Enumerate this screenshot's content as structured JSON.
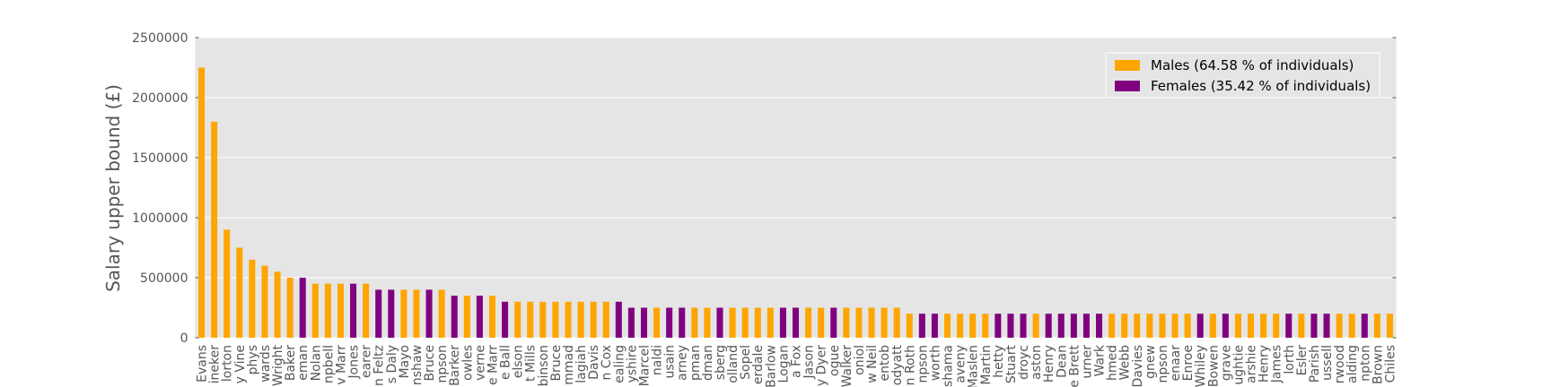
{
  "chart_data": {
    "type": "bar",
    "ylabel": "Salary upper bound (£)",
    "ylim": [
      0,
      2500000
    ],
    "yticks": [
      0,
      500000,
      1000000,
      1500000,
      2000000,
      2500000
    ],
    "ytick_labels": [
      "0",
      "500000",
      "1000000",
      "1500000",
      "2000000",
      "2500000"
    ],
    "grid": true,
    "legend_position": "top-right",
    "legend": [
      {
        "key": "male",
        "label": "Males (64.58 % of individuals)",
        "color": "#FFA500"
      },
      {
        "key": "female",
        "label": "Females (35.42 % of individuals)",
        "color": "#800080"
      }
    ],
    "categories": [
      "Evans",
      "ineker",
      "lorton",
      "y Vine",
      "phys",
      "wards",
      "Wright",
      "Baker",
      "eman",
      "Nolan",
      "npbell",
      "v Marr",
      "Jones",
      "earer",
      "n Feltz",
      "s Daly",
      "Mayo",
      "nshaw",
      "Bruce",
      "npson",
      "Barker",
      "owles",
      "verne",
      "e Marr",
      "e Ball",
      "elson",
      "t Mills",
      "binson",
      "Bruce",
      "mmad",
      "lagiah",
      "Davis",
      "n Cox",
      "ealing",
      "yshire",
      "Marcel",
      "naldi",
      "usain",
      "arney",
      "pman",
      "dman",
      "sberg",
      "olland",
      "Sopel",
      "erdale",
      "Barlow",
      "Logan",
      "a Fox",
      "Jason",
      "y Dyer",
      "ogue",
      "Walker",
      "oniol",
      "w Neil",
      "entob",
      "odyatt",
      "n Roth",
      "npson",
      "worth",
      "shama",
      "aveny",
      "Maslen",
      "Martin",
      "hetty",
      "Stuart",
      "droyc",
      "aston",
      "Henry",
      "Dean",
      "e Brett",
      "urner",
      "Wark",
      "hmed",
      "Webb",
      "Davies",
      "gnew",
      "npson",
      "enaar",
      "Enroe",
      "Whiley",
      "Bowen",
      "grave",
      "ughtie",
      "arshie",
      "Henry",
      "James",
      "lorth",
      "Esler",
      "Parish",
      "ussell",
      "rwood",
      "alding",
      "npton",
      "Brown",
      "Chiles"
    ],
    "series": [
      {
        "key": "male",
        "values": [
          2250000,
          1800000,
          900000,
          750000,
          650000,
          600000,
          550000,
          500000,
          0,
          450000,
          450000,
          450000,
          0,
          450000,
          0,
          0,
          400000,
          400000,
          0,
          400000,
          0,
          350000,
          0,
          350000,
          0,
          300000,
          300000,
          300000,
          300000,
          300000,
          300000,
          300000,
          300000,
          0,
          0,
          0,
          250000,
          0,
          0,
          250000,
          250000,
          0,
          250000,
          250000,
          250000,
          250000,
          0,
          0,
          250000,
          250000,
          0,
          250000,
          250000,
          250000,
          250000,
          250000,
          200000,
          0,
          0,
          200000,
          200000,
          200000,
          200000,
          0,
          0,
          0,
          200000,
          0,
          0,
          0,
          0,
          0,
          200000,
          200000,
          200000,
          200000,
          200000,
          200000,
          200000,
          0,
          200000,
          0,
          200000,
          200000,
          200000,
          200000,
          0,
          200000,
          0,
          0,
          200000,
          200000,
          0,
          200000,
          200000
        ]
      },
      {
        "key": "female",
        "values": [
          0,
          0,
          0,
          0,
          0,
          0,
          0,
          0,
          500000,
          0,
          0,
          0,
          450000,
          0,
          400000,
          400000,
          0,
          0,
          400000,
          0,
          350000,
          0,
          350000,
          0,
          300000,
          0,
          0,
          0,
          0,
          0,
          0,
          0,
          0,
          300000,
          250000,
          250000,
          0,
          250000,
          250000,
          0,
          0,
          250000,
          0,
          0,
          0,
          0,
          250000,
          250000,
          0,
          0,
          250000,
          0,
          0,
          0,
          0,
          0,
          0,
          200000,
          200000,
          0,
          0,
          0,
          0,
          200000,
          200000,
          200000,
          0,
          200000,
          200000,
          200000,
          200000,
          200000,
          0,
          0,
          0,
          0,
          0,
          0,
          0,
          200000,
          0,
          200000,
          0,
          0,
          0,
          0,
          200000,
          0,
          200000,
          200000,
          0,
          0,
          200000,
          0,
          0
        ]
      }
    ]
  }
}
